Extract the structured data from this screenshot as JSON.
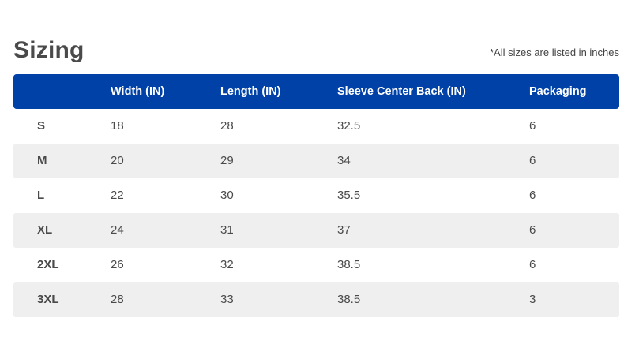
{
  "section": {
    "title": "Sizing",
    "note": "*All sizes are listed in inches"
  },
  "table": {
    "columns": [
      "",
      "Width (IN)",
      "Length (IN)",
      "Sleeve Center Back (IN)",
      "Packaging"
    ],
    "rows": [
      [
        "S",
        "18",
        "28",
        "32.5",
        "6"
      ],
      [
        "M",
        "20",
        "29",
        "34",
        "6"
      ],
      [
        "L",
        "22",
        "30",
        "35.5",
        "6"
      ],
      [
        "XL",
        "24",
        "31",
        "37",
        "6"
      ],
      [
        "2XL",
        "26",
        "32",
        "38.5",
        "6"
      ],
      [
        "3XL",
        "28",
        "33",
        "38.5",
        "3"
      ]
    ]
  },
  "colors": {
    "header_bg": "#0041a8",
    "alt_row_bg": "#efefef",
    "text": "#4a4a4a"
  }
}
